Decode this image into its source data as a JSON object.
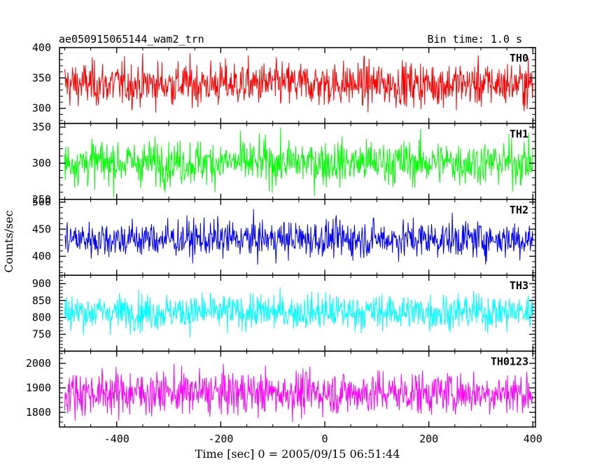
{
  "header": {
    "title": "ae050915065144_wam2_trn",
    "bin_time": "Bin time: 1.0 s"
  },
  "chart_data": {
    "type": "line",
    "title": "ae050915065144_wam2_trn",
    "subtitle": "Bin time: 1.0 s",
    "xlabel": "Time [sec] 0 = 2005/09/15 06:51:44",
    "ylabel": "Counts/sec",
    "xlim": [
      -510,
      405
    ],
    "x_ticks": [
      "-400",
      "-200",
      "0",
      "200",
      "400"
    ],
    "x_tick_values": [
      -400,
      -200,
      0,
      200,
      400
    ],
    "panels": [
      {
        "name": "TH0",
        "color": "#ff0000",
        "mean": 340,
        "amplitude": 62,
        "ylim": [
          275,
          400
        ],
        "y_ticks": [
          300,
          350,
          400
        ],
        "y_tick_labels": [
          "300",
          "350",
          "400"
        ]
      },
      {
        "name": "TH1",
        "color": "#00ff00",
        "mean": 301,
        "amplitude": 52,
        "ylim": [
          250,
          355
        ],
        "y_ticks": [
          250,
          300,
          350
        ],
        "y_tick_labels": [
          "250",
          "300",
          "350"
        ]
      },
      {
        "name": "TH2",
        "color": "#0000ff",
        "mean": 432,
        "amplitude": 58,
        "ylim": [
          365,
          505
        ],
        "y_ticks": [
          400,
          450,
          500
        ],
        "y_tick_labels": [
          "400",
          "450",
          "500"
        ]
      },
      {
        "name": "TH3",
        "color": "#00ffff",
        "mean": 816,
        "amplitude": 90,
        "ylim": [
          700,
          925
        ],
        "y_ticks": [
          750,
          800,
          850,
          900
        ],
        "y_tick_labels": [
          "750",
          "800",
          "850",
          "900"
        ]
      },
      {
        "name": "TH0123",
        "color": "#ff00ff",
        "mean": 1880,
        "amplitude": 150,
        "ylim": [
          1740,
          2050
        ],
        "y_ticks": [
          1800,
          1900,
          2000
        ],
        "y_tick_labels": [
          "1800",
          "1900",
          "2000"
        ]
      }
    ],
    "grid": false,
    "legend": "none"
  }
}
